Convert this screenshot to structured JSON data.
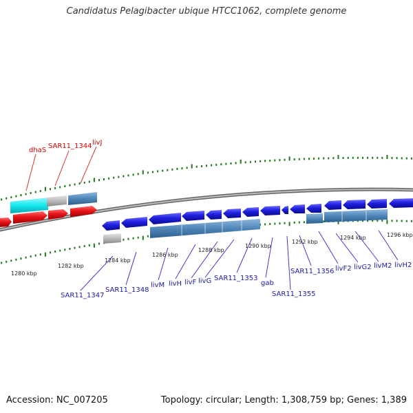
{
  "title": "Candidatus Pelagibacter ubique HTCC1062, complete genome",
  "footer": {
    "accession": "Accession: NC_007205",
    "topology": "Topology: circular; Length: 1,308,759 bp; Genes: 1,389"
  },
  "colors": {
    "forward_gene": "#e8141a",
    "reverse_gene": "#1f1fe0",
    "operon": "#4f86b8",
    "highlight": "#16e8f0",
    "grey_feature": "#b9b9b9",
    "backbone": "#8c8c8c",
    "tick": "#1a7a1a",
    "label_forward": "#d40000",
    "label_reverse": "#1a1aa8"
  },
  "scale_ticks": [
    {
      "label": "1280 kbp",
      "kbp": 1280
    },
    {
      "label": "1282 kbp",
      "kbp": 1282
    },
    {
      "label": "1284 kbp",
      "kbp": 1284
    },
    {
      "label": "1286 kbp",
      "kbp": 1286
    },
    {
      "label": "1288 kbp",
      "kbp": 1288
    },
    {
      "label": "1290 kbp",
      "kbp": 1290
    },
    {
      "label": "1292 kbp",
      "kbp": 1292
    },
    {
      "label": "1294 kbp",
      "kbp": 1294
    },
    {
      "label": "1296 kbp",
      "kbp": 1296
    }
  ],
  "forward_genes": [
    {
      "name": "dhaS"
    },
    {
      "name": "SAR11_1344"
    },
    {
      "name": "livJ"
    }
  ],
  "reverse_genes": [
    {
      "name": "SAR11_1347"
    },
    {
      "name": "SAR11_1348"
    },
    {
      "name": "livM"
    },
    {
      "name": "livH"
    },
    {
      "name": "livF"
    },
    {
      "name": "livG"
    },
    {
      "name": "SAR11_1353"
    },
    {
      "name": "gab"
    },
    {
      "name": "SAR11_1355"
    },
    {
      "name": "SAR11_1356"
    },
    {
      "name": "livF2"
    },
    {
      "name": "livG2"
    },
    {
      "name": "livM2"
    },
    {
      "name": "livH2"
    }
  ]
}
